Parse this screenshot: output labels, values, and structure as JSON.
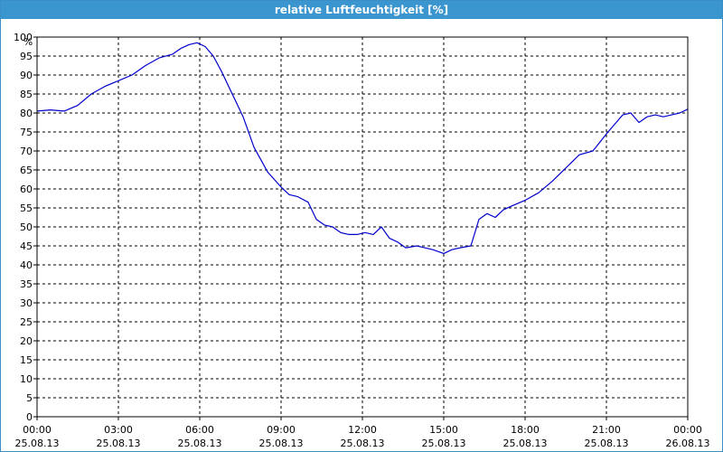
{
  "window": {
    "title": "relative Luftfeuchtigkeit [%]"
  },
  "chart_data": {
    "type": "line",
    "title": "relative Luftfeuchtigkeit [%]",
    "ylabel": "%",
    "xlabel": "",
    "ylim": [
      0,
      100
    ],
    "xlim": [
      0,
      24
    ],
    "grid": true,
    "y_ticks": [
      "0",
      "5",
      "10",
      "15",
      "20",
      "25",
      "30",
      "35",
      "40",
      "45",
      "50",
      "55",
      "60",
      "65",
      "70",
      "75",
      "80",
      "85",
      "90",
      "95",
      "100"
    ],
    "x_ticks": [
      {
        "time": "00:00",
        "date": "25.08.13"
      },
      {
        "time": "03:00",
        "date": "25.08.13"
      },
      {
        "time": "06:00",
        "date": "25.08.13"
      },
      {
        "time": "09:00",
        "date": "25.08.13"
      },
      {
        "time": "12:00",
        "date": "25.08.13"
      },
      {
        "time": "15:00",
        "date": "25.08.13"
      },
      {
        "time": "18:00",
        "date": "25.08.13"
      },
      {
        "time": "21:00",
        "date": "25.08.13"
      },
      {
        "time": "00:00",
        "date": "26.08.13"
      }
    ],
    "line_color": "#0000cc",
    "series": [
      {
        "x": [
          0,
          0.5,
          1,
          1.5,
          2,
          2.5,
          3,
          3.5,
          4,
          4.5,
          5,
          5.3,
          5.6,
          5.9,
          6.2,
          6.5,
          6.8,
          7.2,
          7.6,
          8.0,
          8.5,
          9.0,
          9.3,
          9.6,
          10.0,
          10.3,
          10.6,
          10.9,
          11.2,
          11.5,
          11.8,
          12.1,
          12.4,
          12.7,
          13.0,
          13.3,
          13.6,
          14.0,
          14.3,
          14.6,
          15.0,
          15.3,
          15.6,
          16.0,
          16.3,
          16.6,
          16.9,
          17.2,
          17.5,
          18.0,
          18.5,
          19.0,
          19.5,
          20.0,
          20.5,
          21.0,
          21.3,
          21.6,
          21.9,
          22.2,
          22.5,
          22.8,
          23.1,
          23.4,
          23.7,
          24.0
        ],
        "y": [
          80.5,
          80.8,
          80.5,
          82,
          85,
          87,
          88.5,
          90,
          92.5,
          94.5,
          95.5,
          97,
          98,
          98.5,
          97.5,
          95,
          91,
          85,
          79,
          71,
          64.5,
          60.5,
          58.5,
          58,
          56.5,
          52,
          50.5,
          50,
          48.5,
          48,
          48,
          48.5,
          48,
          50,
          47,
          46,
          44.5,
          45,
          44.5,
          44,
          43,
          44,
          44.5,
          45,
          52,
          53.5,
          52.5,
          54.5,
          55.5,
          57,
          59,
          62,
          65.5,
          69,
          70,
          74.5,
          77,
          79.5,
          80,
          77.5,
          79,
          79.5,
          79,
          79.5,
          80,
          81
        ]
      }
    ]
  }
}
